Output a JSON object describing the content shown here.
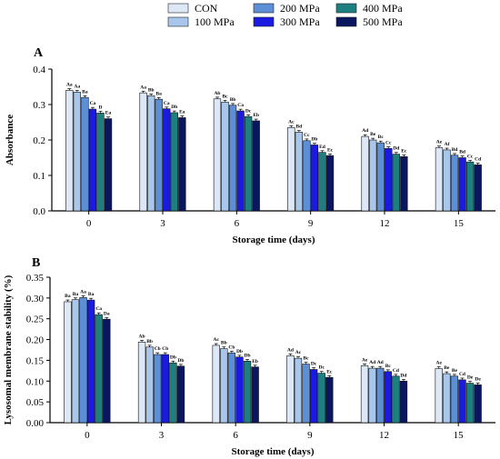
{
  "legend": [
    {
      "name": "CON",
      "color": "#dde8f6"
    },
    {
      "name": "100 MPa",
      "color": "#a9c7ea"
    },
    {
      "name": "200 MPa",
      "color": "#5d8fd6"
    },
    {
      "name": "300 MPa",
      "color": "#1a1ae0"
    },
    {
      "name": "400 MPa",
      "color": "#1e7f80"
    },
    {
      "name": "500 MPa",
      "color": "#0b1660"
    }
  ],
  "chart_data": [
    {
      "type": "bar",
      "panel_label": "A",
      "ylabel": "Absorbance",
      "xlabel": "Storage time (days)",
      "categories": [
        "0",
        "3",
        "6",
        "9",
        "12",
        "15"
      ],
      "ylim": [
        0.0,
        0.4
      ],
      "yticks": [
        "0.0",
        "0.1",
        "0.2",
        "0.3",
        "0.4"
      ],
      "series": [
        {
          "name": "CON",
          "values": [
            0.34,
            0.333,
            0.316,
            0.235,
            0.21,
            0.178
          ],
          "labels": [
            "Aa",
            "Aa",
            "Ab",
            "Ac",
            "Ad",
            "Ae"
          ]
        },
        {
          "name": "100 MPa",
          "values": [
            0.335,
            0.325,
            0.307,
            0.222,
            0.2,
            0.172
          ],
          "labels": [
            "Aa",
            "Bb",
            "Bc",
            "Bd",
            "Be",
            "Af"
          ]
        },
        {
          "name": "200 MPa",
          "values": [
            0.32,
            0.315,
            0.298,
            0.198,
            0.192,
            0.157
          ],
          "labels": [
            "Ba",
            "Ba",
            "Bb",
            "Cc",
            "Bc",
            "Bd"
          ]
        },
        {
          "name": "300 MPa",
          "values": [
            0.287,
            0.288,
            0.282,
            0.186,
            0.176,
            0.15
          ],
          "labels": [
            "Ca",
            "Ca",
            "Ca",
            "Db",
            "Cc",
            "Bd"
          ]
        },
        {
          "name": "400 MPa",
          "values": [
            0.276,
            0.277,
            0.266,
            0.165,
            0.16,
            0.138
          ],
          "labels": [
            "D",
            "Db",
            "Dc",
            "Ed",
            "Dd",
            "Cc"
          ]
        },
        {
          "name": "500 MPa",
          "values": [
            0.26,
            0.263,
            0.254,
            0.156,
            0.153,
            0.13
          ],
          "labels": [
            "Ea",
            "Ea",
            "Eb",
            "Ec",
            "Ec",
            "Cd"
          ]
        }
      ]
    },
    {
      "type": "bar",
      "panel_label": "B",
      "ylabel": "Lysosomal membrane stability (%)",
      "xlabel": "Storage time (days)",
      "categories": [
        "0",
        "3",
        "6",
        "9",
        "12",
        "15"
      ],
      "ylim": [
        0.0,
        0.35
      ],
      "yticks": [
        "0.00",
        "0.05",
        "0.10",
        "0.15",
        "0.20",
        "0.25",
        "0.30",
        "0.35"
      ],
      "series": [
        {
          "name": "CON",
          "values": [
            0.291,
            0.194,
            0.186,
            0.161,
            0.137,
            0.13
          ],
          "labels": [
            "Ba",
            "Ab",
            "Ac",
            "Ad",
            "Ae",
            "Ae"
          ]
        },
        {
          "name": "100 MPa",
          "values": [
            0.296,
            0.182,
            0.178,
            0.155,
            0.131,
            0.118
          ],
          "labels": [
            "Ba",
            "Bb",
            "Bb",
            "Ac",
            "Ad",
            "Be"
          ]
        },
        {
          "name": "200 MPa",
          "values": [
            0.301,
            0.164,
            0.168,
            0.141,
            0.131,
            0.112
          ],
          "labels": [
            "Aa",
            "Cb",
            "Cb",
            "Bc",
            "Ad",
            "Be"
          ]
        },
        {
          "name": "300 MPa",
          "values": [
            0.295,
            0.164,
            0.158,
            0.128,
            0.123,
            0.103
          ],
          "labels": [
            "Ba",
            "Cb",
            "Db",
            "Dc",
            "Bc",
            "Cd"
          ]
        },
        {
          "name": "400 MPa",
          "values": [
            0.26,
            0.144,
            0.148,
            0.119,
            0.112,
            0.095
          ],
          "labels": [
            "Ca",
            "Db",
            "Db",
            "Dc",
            "Cd",
            "De"
          ]
        },
        {
          "name": "500 MPa",
          "values": [
            0.249,
            0.136,
            0.134,
            0.109,
            0.1,
            0.091
          ],
          "labels": [
            "Da",
            "Db",
            "Eb",
            "Ec",
            "Dd",
            "De"
          ]
        }
      ]
    }
  ]
}
